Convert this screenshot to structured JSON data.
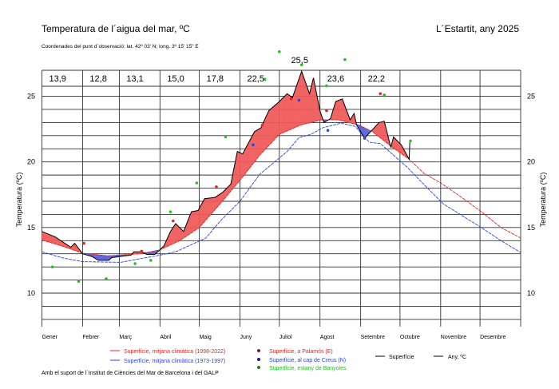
{
  "header": {
    "title": "Temperatura de l´aigua del mar, ºC",
    "location": "L´Estartit, any 2025",
    "coordinates": "Coordenades del punt d´observació: lat. 42º 03' N; long. 3º 15' 15\" E"
  },
  "footer": {
    "credits": "Amb el suport de l´Institut de Ciències del Mar de Barcelona i del GALP"
  },
  "legend": {
    "clim_recent": "Superfície, mitjana climàtica (1998-2022)",
    "clim_old": "Superfície, mitjana climàtica (1973-1997)",
    "palamos": "Superfície, a Palamós (E)",
    "creus": "Superfície, al cap de Creus (N)",
    "banyoles": "Superfície, estany de Banyoles",
    "surface": "Superfície",
    "year": "Any,  ºC"
  },
  "colors": {
    "clim_recent": "#e8231f",
    "clim_old": "#2a44e0",
    "palamos": "#e8231f",
    "creus": "#2a44e0",
    "banyoles": "#22c422",
    "above_fill": "#f05a5a",
    "below_fill": "#5560e0",
    "observed": "#000000"
  },
  "chart_data": {
    "type": "line",
    "xlabel": "",
    "ylabel": "Temperatura (ºC)",
    "ylim": [
      8,
      28
    ],
    "y_ticks": [
      10,
      15,
      20,
      25
    ],
    "grid": true,
    "x_unit": "day of year",
    "months": [
      "Gener",
      "Febrer",
      "Març",
      "Abril",
      "Maig",
      "Juny",
      "Juliol",
      "Agost",
      "Setembre",
      "Octubre",
      "Novembre",
      "Desembre"
    ],
    "monthly_means": [
      "13,9",
      "12,8",
      "13,1",
      "15,0",
      "17,8",
      "22,5",
      "25,5",
      "23,6",
      "22,2",
      "",
      "",
      ""
    ],
    "series": [
      {
        "key": "observed",
        "name": "Superfície",
        "points": [
          [
            0,
            14.7
          ],
          [
            10,
            14.3
          ],
          [
            22,
            13.5
          ],
          [
            25,
            13.8
          ],
          [
            31,
            13.0
          ],
          [
            38,
            12.8
          ],
          [
            43,
            12.5
          ],
          [
            51,
            12.5
          ],
          [
            53,
            12.7
          ],
          [
            60,
            12.8
          ],
          [
            68,
            12.9
          ],
          [
            70,
            13.15
          ],
          [
            76,
            13.15
          ],
          [
            80,
            12.95
          ],
          [
            86,
            12.95
          ],
          [
            90,
            13.3
          ],
          [
            93,
            13.6
          ],
          [
            98,
            14.7
          ],
          [
            102,
            15.3
          ],
          [
            108,
            14.7
          ],
          [
            114,
            16.2
          ],
          [
            119,
            16.3
          ],
          [
            124,
            17.2
          ],
          [
            132,
            17.3
          ],
          [
            138,
            17.7
          ],
          [
            144,
            18.3
          ],
          [
            149,
            20.8
          ],
          [
            153,
            20.6
          ],
          [
            162,
            22.3
          ],
          [
            167,
            22.6
          ],
          [
            173,
            23.9
          ],
          [
            181,
            24.6
          ],
          [
            187,
            25.2
          ],
          [
            191,
            24.9
          ],
          [
            198,
            26.9
          ],
          [
            204,
            25.2
          ],
          [
            207,
            26.4
          ],
          [
            212,
            23.9
          ],
          [
            215,
            23.0
          ],
          [
            220,
            23.3
          ],
          [
            224,
            24.6
          ],
          [
            229,
            24.8
          ],
          [
            235,
            23.2
          ],
          [
            238,
            23.7
          ],
          [
            240,
            22.8
          ],
          [
            246,
            21.8
          ],
          [
            257,
            23.0
          ],
          [
            261,
            23.1
          ],
          [
            266,
            21.1
          ],
          [
            268,
            21.9
          ],
          [
            274,
            21.3
          ],
          [
            280,
            20.2
          ],
          [
            280.5,
            21.5
          ]
        ]
      },
      {
        "key": "clim_recent",
        "name": "Superfície, mitjana climàtica (1998-2022)",
        "points": [
          [
            0,
            14.05
          ],
          [
            15,
            13.6
          ],
          [
            31,
            13.05
          ],
          [
            50,
            12.85
          ],
          [
            75,
            13.0
          ],
          [
            90,
            13.3
          ],
          [
            105,
            14.0
          ],
          [
            120,
            15.0
          ],
          [
            135,
            16.7
          ],
          [
            151,
            18.6
          ],
          [
            166,
            20.5
          ],
          [
            181,
            22.1
          ],
          [
            197,
            22.8
          ],
          [
            213,
            23.2
          ],
          [
            226,
            23.2
          ],
          [
            242,
            22.8
          ],
          [
            252,
            22.3
          ],
          [
            266,
            21.2
          ],
          [
            280,
            20.2
          ],
          [
            291,
            19.15
          ],
          [
            304,
            18.4
          ],
          [
            320,
            17.3
          ],
          [
            335,
            16.2
          ],
          [
            350,
            15.0
          ],
          [
            365,
            14.2
          ]
        ]
      },
      {
        "key": "clim_old",
        "name": "Superfície, mitjana climàtica (1973-1997)",
        "points": [
          [
            0,
            13.15
          ],
          [
            15,
            12.7
          ],
          [
            31,
            12.4
          ],
          [
            60,
            12.35
          ],
          [
            90,
            12.9
          ],
          [
            102,
            13.15
          ],
          [
            125,
            14.2
          ],
          [
            136,
            15.5
          ],
          [
            151,
            17.0
          ],
          [
            166,
            19.05
          ],
          [
            187,
            20.8
          ],
          [
            196,
            21.85
          ],
          [
            205,
            22.1
          ],
          [
            214,
            22.6
          ],
          [
            228,
            22.95
          ],
          [
            239,
            22.7
          ],
          [
            246,
            21.85
          ],
          [
            250,
            21.5
          ],
          [
            258,
            21.4
          ],
          [
            266,
            20.7
          ],
          [
            279,
            19.55
          ],
          [
            291,
            18.3
          ],
          [
            306,
            16.8
          ],
          [
            335,
            15.0
          ],
          [
            350,
            14.0
          ],
          [
            365,
            13.1
          ]
        ]
      }
    ],
    "points": [
      {
        "key": "palamos",
        "values": [
          [
            32,
            13.8
          ],
          [
            76,
            13.2
          ],
          [
            100,
            15.5
          ],
          [
            133,
            18.1
          ],
          [
            168,
            22.8
          ],
          [
            190,
            24.8
          ],
          [
            217,
            23.9
          ],
          [
            258,
            25.2
          ]
        ]
      },
      {
        "key": "creus",
        "values": [
          [
            161,
            21.3
          ],
          [
            196,
            24.7
          ],
          [
            218,
            22.4
          ],
          [
            246,
            21.8
          ]
        ]
      },
      {
        "key": "banyoles",
        "values": [
          [
            8,
            12.0
          ],
          [
            28,
            10.9
          ],
          [
            49,
            11.1
          ],
          [
            71,
            12.25
          ],
          [
            83,
            12.5
          ],
          [
            98,
            16.2
          ],
          [
            118,
            18.4
          ],
          [
            140,
            21.9
          ],
          [
            170,
            26.3
          ],
          [
            181,
            28.4
          ],
          [
            198,
            27.4
          ],
          [
            217,
            25.8
          ],
          [
            231,
            27.8
          ],
          [
            261,
            25.1
          ],
          [
            281,
            21.6
          ]
        ]
      }
    ]
  }
}
